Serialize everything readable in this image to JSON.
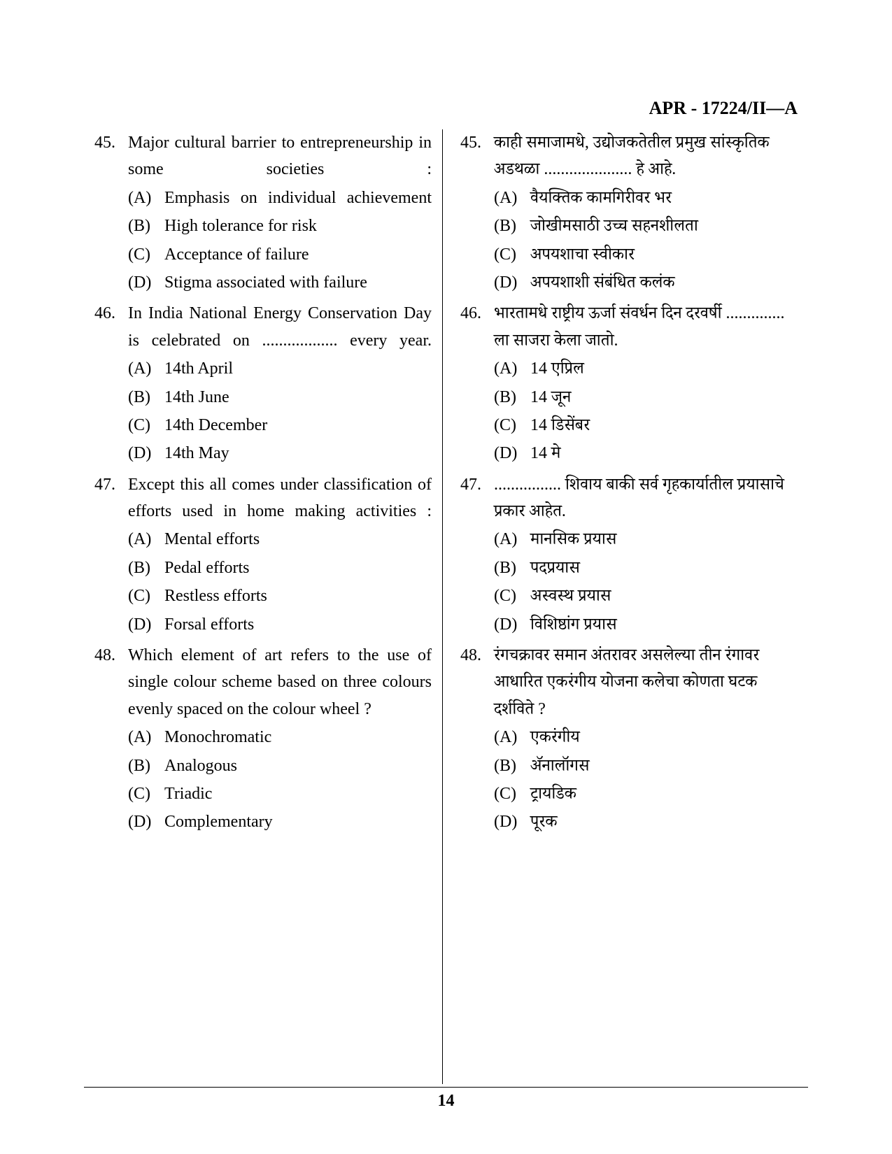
{
  "header_code": "APR - 17224/II—A",
  "page_number": "14",
  "left": {
    "questions": [
      {
        "num": "45.",
        "text": "Major cultural barrier to entrepreneurship in some societies :",
        "options": [
          {
            "label": "(A)",
            "text": "Emphasis on individual achievement"
          },
          {
            "label": "(B)",
            "text": "High tolerance for risk"
          },
          {
            "label": "(C)",
            "text": "Acceptance of failure"
          },
          {
            "label": "(D)",
            "text": "Stigma associated with failure"
          }
        ]
      },
      {
        "num": "46.",
        "text": "In India National Energy Conservation Day is celebrated on .................. every year.",
        "options": [
          {
            "label": "(A)",
            "text": "14th April"
          },
          {
            "label": "(B)",
            "text": "14th June"
          },
          {
            "label": "(C)",
            "text": "14th December"
          },
          {
            "label": "(D)",
            "text": "14th May"
          }
        ]
      },
      {
        "num": "47.",
        "text": "Except this all comes under classification of efforts used in home making activities :",
        "options": [
          {
            "label": "(A)",
            "text": "Mental efforts"
          },
          {
            "label": "(B)",
            "text": "Pedal efforts"
          },
          {
            "label": "(C)",
            "text": "Restless efforts"
          },
          {
            "label": "(D)",
            "text": "Forsal efforts"
          }
        ]
      },
      {
        "num": "48.",
        "text": "Which element of art refers to the use of single colour scheme based on three colours evenly spaced on the colour wheel ?",
        "options": [
          {
            "label": "(A)",
            "text": "Monochromatic"
          },
          {
            "label": "(B)",
            "text": "Analogous"
          },
          {
            "label": "(C)",
            "text": "Triadic"
          },
          {
            "label": "(D)",
            "text": "Complementary"
          }
        ]
      }
    ]
  },
  "right": {
    "questions": [
      {
        "num": "45.",
        "text": "काही समाजामधे, उद्योजकतेतील प्रमुख सांस्कृतिक अडथळा ..................... हे आहे.",
        "options": [
          {
            "label": "(A)",
            "text": "वैयक्तिक कामगिरीवर भर"
          },
          {
            "label": "(B)",
            "text": "जोखीमसाठी उच्च सहनशीलता"
          },
          {
            "label": "(C)",
            "text": "अपयशाचा स्वीकार"
          },
          {
            "label": "(D)",
            "text": "अपयशाशी संबंधित कलंक"
          }
        ]
      },
      {
        "num": "46.",
        "text": "भारतामधे राष्ट्रीय ऊर्जा संवर्धन दिन दरवर्षी .............. ला साजरा केला जातो.",
        "options": [
          {
            "label": "(A)",
            "text": "14 एप्रिल"
          },
          {
            "label": "(B)",
            "text": "14 जून"
          },
          {
            "label": "(C)",
            "text": "14 डिसेंबर"
          },
          {
            "label": "(D)",
            "text": "14 मे"
          }
        ]
      },
      {
        "num": "47.",
        "text": "................ शिवाय बाकी सर्व गृहकार्यातील प्रयासाचे प्रकार आहेत.",
        "options": [
          {
            "label": "(A)",
            "text": "मानसिक प्रयास"
          },
          {
            "label": "(B)",
            "text": "पदप्रयास"
          },
          {
            "label": "(C)",
            "text": "अस्वस्थ प्रयास"
          },
          {
            "label": "(D)",
            "text": "विशिष्ठांग प्रयास"
          }
        ]
      },
      {
        "num": "48.",
        "text": "रंगचक्रावर समान अंतरावर असलेल्या तीन रंगावर आधारित एकरंगीय योजना कलेचा कोणता घटक दर्शविते ?",
        "options": [
          {
            "label": "(A)",
            "text": "एकरंगीय"
          },
          {
            "label": "(B)",
            "text": "ॲनालॉगस"
          },
          {
            "label": "(C)",
            "text": "ट्रायडिक"
          },
          {
            "label": "(D)",
            "text": "पूरक"
          }
        ]
      }
    ]
  }
}
